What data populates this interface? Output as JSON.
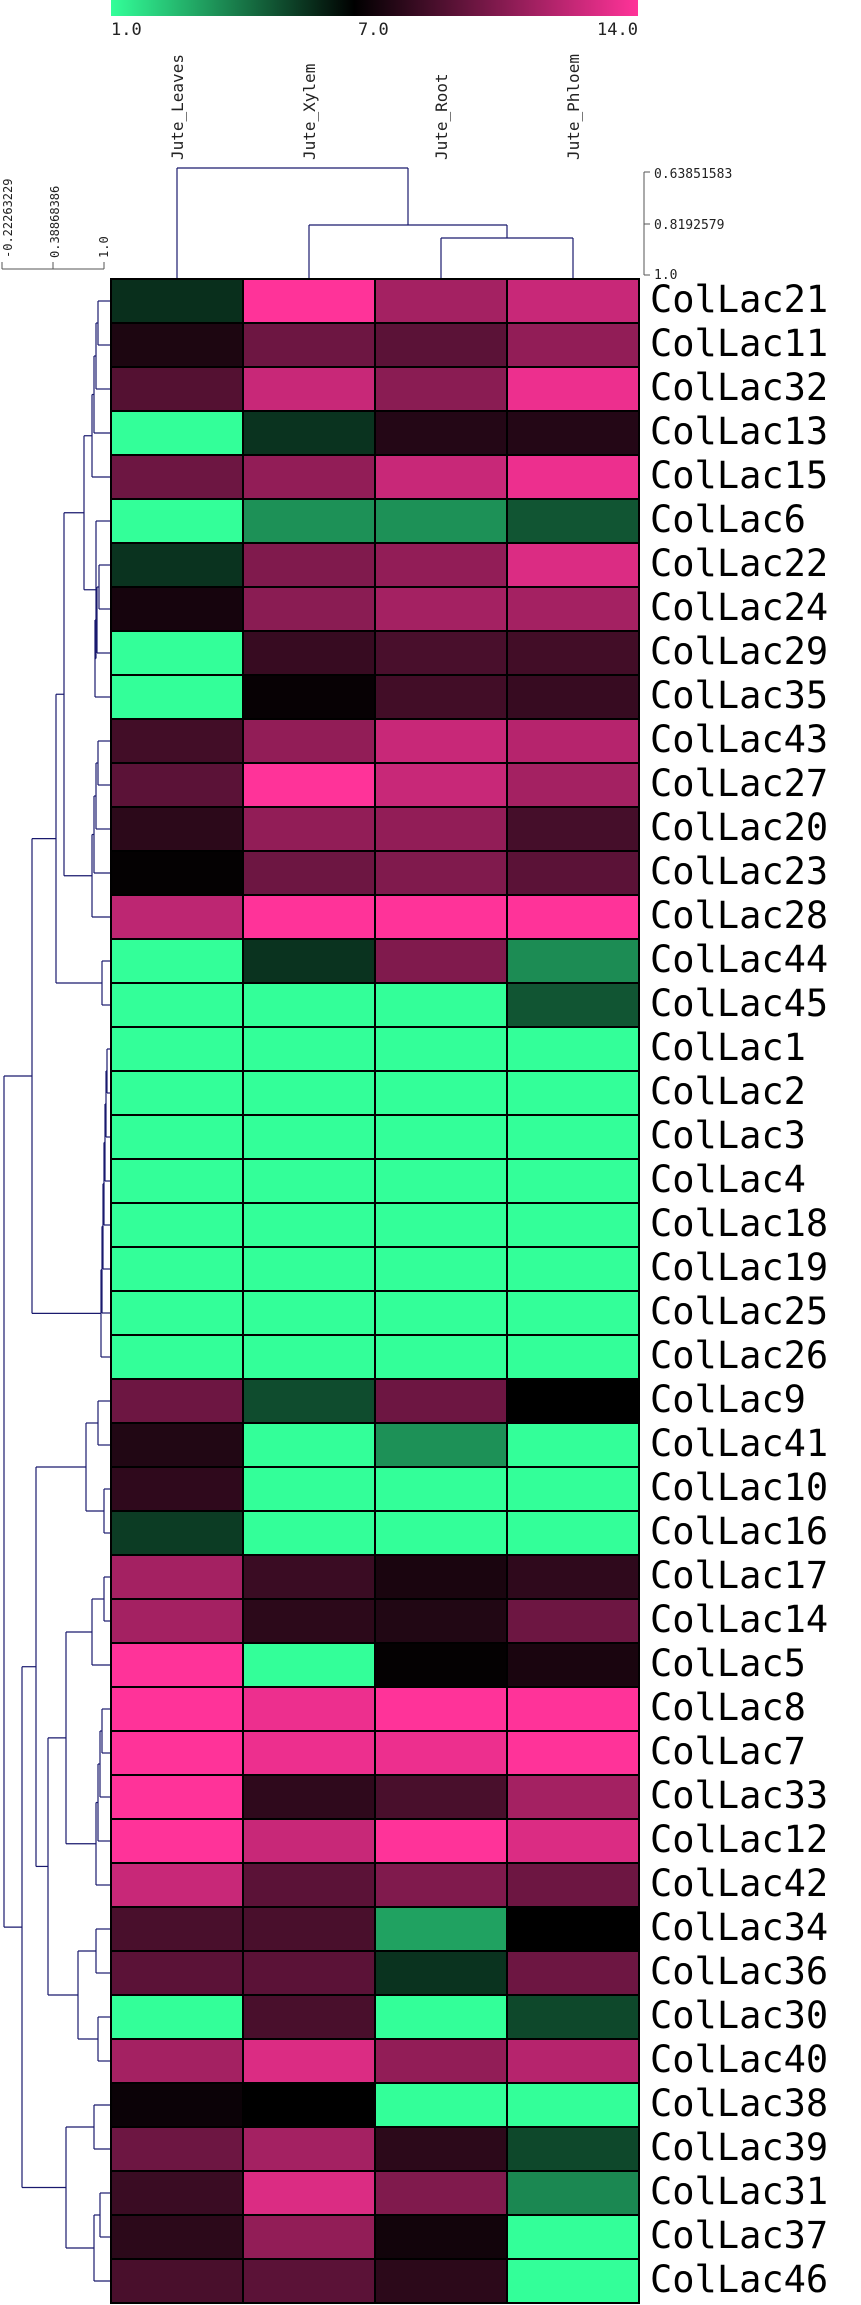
{
  "chart_data": {
    "type": "heatmap",
    "colorscale": {
      "min": 1.0,
      "mid": 7.0,
      "max": 14.0,
      "min_label": "1.0",
      "mid_label": "7.0",
      "max_label": "14.0",
      "low_color": "#33ff99",
      "mid_color": "#000000",
      "high_color": "#ff3399"
    },
    "columns": [
      "Jute_Leaves",
      "Jute_Xylem",
      "Jute_Root",
      "Jute_Phloem"
    ],
    "rows": [
      "ColLac21",
      "ColLac11",
      "ColLac32",
      "ColLac13",
      "ColLac15",
      "ColLac6",
      "ColLac22",
      "ColLac24",
      "ColLac29",
      "ColLac35",
      "ColLac43",
      "ColLac27",
      "ColLac20",
      "ColLac23",
      "ColLac28",
      "ColLac44",
      "ColLac45",
      "ColLac1",
      "ColLac2",
      "ColLac3",
      "ColLac4",
      "ColLac18",
      "ColLac19",
      "ColLac25",
      "ColLac26",
      "ColLac9",
      "ColLac41",
      "ColLac10",
      "ColLac16",
      "ColLac17",
      "ColLac14",
      "ColLac5",
      "ColLac8",
      "ColLac7",
      "ColLac33",
      "ColLac12",
      "ColLac42",
      "ColLac34",
      "ColLac36",
      "ColLac30",
      "ColLac40",
      "ColLac38",
      "ColLac39",
      "ColLac31",
      "ColLac37",
      "ColLac46"
    ],
    "values": [
      [
        5.9,
        14.0,
        11.5,
        12.5
      ],
      [
        7.8,
        10.0,
        9.5,
        11.0
      ],
      [
        9.3,
        12.5,
        10.8,
        13.5
      ],
      [
        1.0,
        5.8,
        8.0,
        8.0
      ],
      [
        10.0,
        11.0,
        12.5,
        13.5
      ],
      [
        1.0,
        3.6,
        3.6,
        5.0
      ],
      [
        5.8,
        10.5,
        11.0,
        13.0
      ],
      [
        7.6,
        10.8,
        11.5,
        11.5
      ],
      [
        1.0,
        8.5,
        9.0,
        8.8
      ],
      [
        1.0,
        7.2,
        8.8,
        8.5
      ],
      [
        8.8,
        11.0,
        12.5,
        12.0
      ],
      [
        9.5,
        14.0,
        12.5,
        11.5
      ],
      [
        8.2,
        11.0,
        11.0,
        8.9
      ],
      [
        7.1,
        10.0,
        10.5,
        9.5
      ],
      [
        12.2,
        14.0,
        14.0,
        14.0
      ],
      [
        1.0,
        5.8,
        10.5,
        3.7
      ],
      [
        1.0,
        1.0,
        1.0,
        5.0
      ],
      [
        1.0,
        1.0,
        1.0,
        1.0
      ],
      [
        1.0,
        1.0,
        1.0,
        1.0
      ],
      [
        1.0,
        1.0,
        1.0,
        1.0
      ],
      [
        1.0,
        1.0,
        1.0,
        1.0
      ],
      [
        1.0,
        1.0,
        1.0,
        1.0
      ],
      [
        1.0,
        1.0,
        1.0,
        1.0
      ],
      [
        1.0,
        1.0,
        1.0,
        1.0
      ],
      [
        1.0,
        1.0,
        1.0,
        1.0
      ],
      [
        10.0,
        5.2,
        10.0,
        7.0
      ],
      [
        7.9,
        1.0,
        3.6,
        1.0
      ],
      [
        8.3,
        1.0,
        1.0,
        1.0
      ],
      [
        5.6,
        1.0,
        1.0,
        1.0
      ],
      [
        11.5,
        8.6,
        7.7,
        8.3
      ],
      [
        11.5,
        8.2,
        7.9,
        10.0
      ],
      [
        14.0,
        1.0,
        7.1,
        7.7
      ],
      [
        14.0,
        13.5,
        14.0,
        14.0
      ],
      [
        14.0,
        13.5,
        13.5,
        14.0
      ],
      [
        14.0,
        8.3,
        9.0,
        11.5
      ],
      [
        14.0,
        12.5,
        14.0,
        13.0
      ],
      [
        12.5,
        9.5,
        10.5,
        10.0
      ],
      [
        9.0,
        9.0,
        3.2,
        7.0
      ],
      [
        9.5,
        9.5,
        5.8,
        10.0
      ],
      [
        1.0,
        9.0,
        1.0,
        5.3
      ],
      [
        11.5,
        13.0,
        11.0,
        12.0
      ],
      [
        7.3,
        7.0,
        1.0,
        1.0
      ],
      [
        10.0,
        11.5,
        8.2,
        5.3
      ],
      [
        8.6,
        13.0,
        10.5,
        3.8
      ],
      [
        8.2,
        11.0,
        7.5,
        1.0
      ],
      [
        9.0,
        9.5,
        8.2,
        1.0
      ]
    ],
    "row_dendrogram_ticks": [
      "-0.22263229",
      "0.38868386",
      "1.0"
    ],
    "col_dendrogram_ticks": [
      "0.63851583",
      "0.8192579",
      "1.0"
    ]
  }
}
